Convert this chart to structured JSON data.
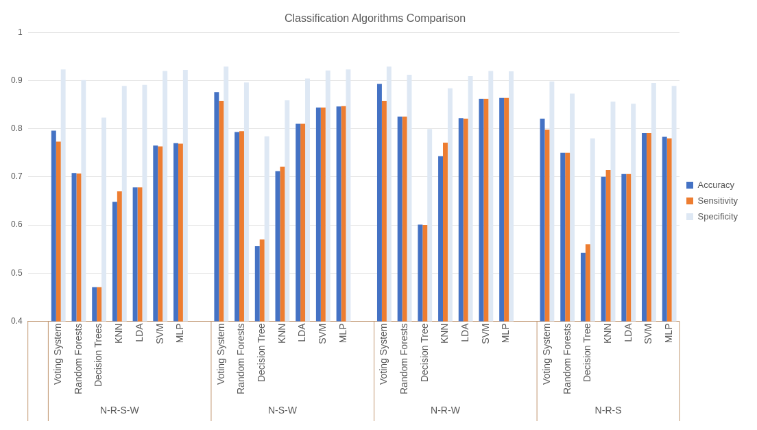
{
  "chart_data": {
    "type": "bar",
    "title": "Classification Algorithms Comparison",
    "categories": [
      null,
      "Voting System",
      "Random Forests",
      "Decision Trees",
      "KNN",
      "LDA",
      "SVM",
      "MLP",
      null,
      "Voting System",
      "Random Forests",
      "Decision Tree",
      "KNN",
      "LDA",
      "SVM",
      "MLP",
      null,
      "Voting System",
      "Random Forests",
      "Decision Tree",
      "KNN",
      "LDA",
      "SVM",
      "MLP",
      null,
      "Voting System",
      "Random Forests",
      "Decision Tree",
      "KNN",
      "LDA",
      "SVM",
      "MLP"
    ],
    "series": [
      {
        "name": "Accuracy",
        "color": "#4472c4",
        "values": [
          null,
          0.796,
          0.708,
          0.471,
          0.648,
          0.678,
          0.765,
          0.77,
          null,
          0.876,
          0.793,
          0.556,
          0.712,
          0.81,
          0.844,
          0.846,
          null,
          0.893,
          0.825,
          0.601,
          0.743,
          0.822,
          0.862,
          0.864,
          null,
          0.821,
          0.75,
          0.542,
          0.7,
          0.706,
          0.791,
          0.783
        ]
      },
      {
        "name": "Sensitivity",
        "color": "#ed7d31",
        "values": [
          null,
          0.773,
          0.707,
          0.471,
          0.67,
          0.678,
          0.763,
          0.769,
          null,
          0.858,
          0.795,
          0.57,
          0.721,
          0.81,
          0.844,
          0.847,
          null,
          0.858,
          0.825,
          0.6,
          0.771,
          0.821,
          0.862,
          0.864,
          null,
          0.798,
          0.75,
          0.56,
          0.714,
          0.706,
          0.791,
          0.78
        ]
      },
      {
        "name": "Specificity",
        "color": "#dee8f4",
        "values": [
          null,
          0.923,
          0.901,
          0.823,
          0.889,
          0.891,
          0.92,
          0.922,
          null,
          0.929,
          0.896,
          0.784,
          0.859,
          0.904,
          0.921,
          0.923,
          null,
          0.929,
          0.912,
          0.799,
          0.884,
          0.909,
          0.92,
          0.919,
          null,
          0.898,
          0.873,
          0.78,
          0.856,
          0.852,
          0.895,
          0.889
        ]
      }
    ],
    "ylim": [
      0.4,
      1
    ],
    "yticks": [
      0.4,
      0.5,
      0.6,
      0.7,
      0.8,
      0.9,
      1
    ],
    "grid": "y",
    "legend": "right",
    "annotations": [
      "N-R-S-W",
      "N-S-W",
      "N-R-W",
      "N-R-S"
    ]
  }
}
